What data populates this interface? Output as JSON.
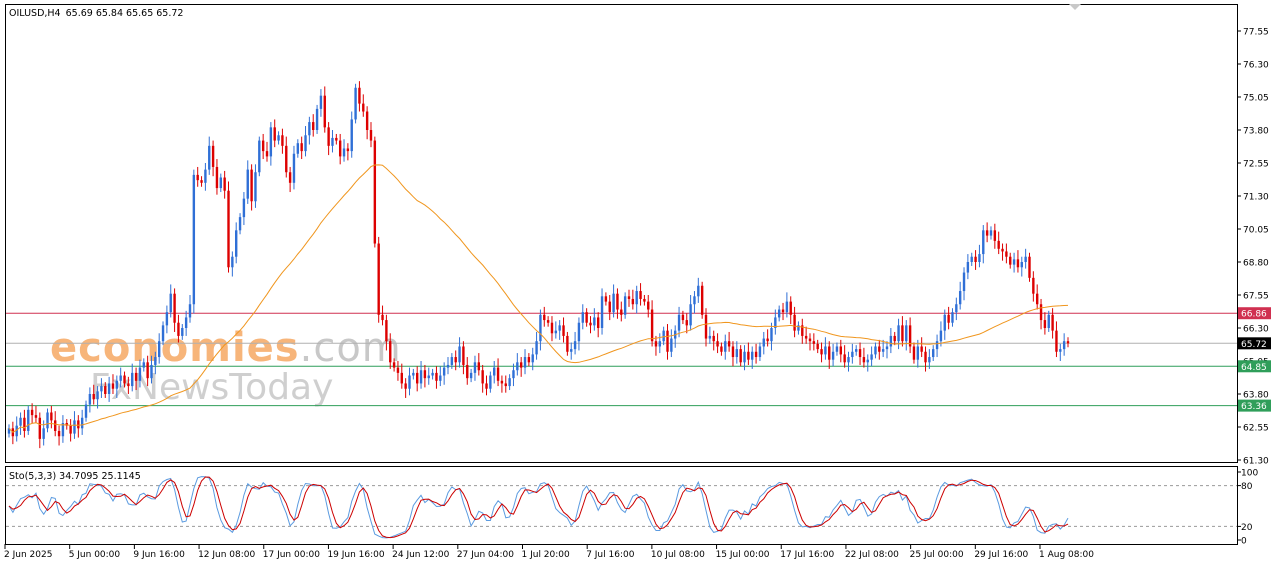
{
  "header": {
    "symbol": "OILUSD,H4",
    "ohlc": "65.69 65.84 65.65 65.72"
  },
  "stochastic_label": "Sto(5,3,3) 34.7095 25.1145",
  "watermark": {
    "brand": "economies.com",
    "brand_colored": "economies",
    "brand_suffix": ".com",
    "sub": "FxNewsToday"
  },
  "colors": {
    "up_candle": "#2f6fd6",
    "down_candle": "#dd0000",
    "moving_average": "#f0961e",
    "resistance_line": "#d03050",
    "support_line": "#2f9e5a",
    "stoch_main": "#5b9be0",
    "stoch_signal": "#cc0000",
    "current_price_tag": "#000000",
    "watermark_orange": "#f7b57a",
    "watermark_gray": "#c8c8c8"
  },
  "chart_data": [
    {
      "type": "candlestick",
      "title": "OILUSD,H4",
      "ylim": [
        61.3,
        77.55
      ],
      "y_ticks": [
        "77.55",
        "76.30",
        "75.05",
        "73.80",
        "72.55",
        "71.30",
        "70.05",
        "68.80",
        "67.55",
        "66.30",
        "65.05",
        "63.80",
        "62.55",
        "61.30"
      ],
      "x_ticks": [
        "2 Jun 2025",
        "5 Jun 00:00",
        "9 Jun 16:00",
        "12 Jun 08:00",
        "17 Jun 00:00",
        "19 Jun 16:00",
        "24 Jun 12:00",
        "27 Jun 04:00",
        "1 Jul 20:00",
        "7 Jul 16:00",
        "10 Jul 08:00",
        "15 Jul 00:00",
        "17 Jul 16:00",
        "22 Jul 08:00",
        "25 Jul 00:00",
        "29 Jul 16:00",
        "1 Aug 08:00"
      ],
      "current_price": "65.72",
      "horizontal_lines": [
        {
          "name": "resistance",
          "value": 66.86,
          "label": "66.86"
        },
        {
          "name": "support-1",
          "value": 64.85,
          "label": "64.85"
        },
        {
          "name": "support-2",
          "value": 63.36,
          "label": "63.36"
        }
      ],
      "closes": [
        62.5,
        62.2,
        62.6,
        62.9,
        62.4,
        63.2,
        63.0,
        62.9,
        62.1,
        62.5,
        63.1,
        62.8,
        62.4,
        62.2,
        62.7,
        62.6,
        62.3,
        62.8,
        62.5,
        62.9,
        63.4,
        63.8,
        63.6,
        63.9,
        64.1,
        63.8,
        64.2,
        64.0,
        64.3,
        64.5,
        64.2,
        64.1,
        64.6,
        64.3,
        64.8,
        65.0,
        64.4,
        64.9,
        65.2,
        65.8,
        66.4,
        66.9,
        67.6,
        66.5,
        66.0,
        66.3,
        66.7,
        67.2,
        72.1,
        71.9,
        71.8,
        72.3,
        73.2,
        72.4,
        71.6,
        72.0,
        71.5,
        68.6,
        69.0,
        70.0,
        70.5,
        71.2,
        72.3,
        71.1,
        72.2,
        73.4,
        73.0,
        72.8,
        73.9,
        73.4,
        73.6,
        73.2,
        72.2,
        71.8,
        72.9,
        73.3,
        73.0,
        73.6,
        74.1,
        73.8,
        74.6,
        75.1,
        73.9,
        73.2,
        73.5,
        73.4,
        72.8,
        73.1,
        73.0,
        74.2,
        75.4,
        74.8,
        74.5,
        73.8,
        73.4,
        69.5,
        66.8,
        66.6,
        65.8,
        65.0,
        64.8,
        64.6,
        64.2,
        64.0,
        64.5,
        64.6,
        64.2,
        64.7,
        64.4,
        64.5,
        64.6,
        64.3,
        64.5,
        64.8,
        64.9,
        65.2,
        65.0,
        65.6,
        64.9,
        64.4,
        64.6,
        65.0,
        64.7,
        64.2,
        64.0,
        64.5,
        64.8,
        64.3,
        64.2,
        64.1,
        64.4,
        64.7,
        65.0,
        64.8,
        65.2,
        65.0,
        65.3,
        65.8,
        66.8,
        66.6,
        66.5,
        66.1,
        66.2,
        66.4,
        66.0,
        65.4,
        65.5,
        65.8,
        66.5,
        66.9,
        66.5,
        66.4,
        66.7,
        66.3,
        67.5,
        67.3,
        66.9,
        67.6,
        67.0,
        66.8,
        67.5,
        67.4,
        67.2,
        67.7,
        67.4,
        67.3,
        67.0,
        65.8,
        65.6,
        65.8,
        66.2,
        65.4,
        65.9,
        66.2,
        66.8,
        66.6,
        66.4,
        67.2,
        67.5,
        67.9,
        66.8,
        65.9,
        66.0,
        65.8,
        65.6,
        65.4,
        65.8,
        65.6,
        65.2,
        65.5,
        65.0,
        65.4,
        65.1,
        65.4,
        65.2,
        65.6,
        65.9,
        65.8,
        66.3,
        66.7,
        67.0,
        66.9,
        67.3,
        66.8,
        66.2,
        66.4,
        66.0,
        65.9,
        65.8,
        65.7,
        65.5,
        65.3,
        65.6,
        65.1,
        65.4,
        65.6,
        65.3,
        65.0,
        65.2,
        65.4,
        65.5,
        65.2,
        65.0,
        65.1,
        65.3,
        65.6,
        65.4,
        65.5,
        65.6,
        66.0,
        65.8,
        66.4,
        65.8,
        66.4,
        65.6,
        65.1,
        65.6,
        65.4,
        65.0,
        65.2,
        65.5,
        65.8,
        66.2,
        66.8,
        66.5,
        66.9,
        67.2,
        67.7,
        68.4,
        68.8,
        69.0,
        68.8,
        69.1,
        70.0,
        69.8,
        70.0,
        69.6,
        69.3,
        69.2,
        69.0,
        68.7,
        68.9,
        68.6,
        68.8,
        69.0,
        68.2,
        67.6,
        67.2,
        66.6,
        66.3,
        66.8,
        66.2,
        65.4,
        65.5,
        65.8,
        65.72
      ],
      "moving_average_label": "orange moving average"
    },
    {
      "type": "line",
      "title": "Sto(5,3,3) 34.7095 25.1145",
      "ylim": [
        0,
        100
      ],
      "y_ticks": [
        "100",
        "80",
        "20",
        "0"
      ],
      "levels": [
        80,
        20
      ],
      "series": [
        {
          "name": "main",
          "last": 34.7095
        },
        {
          "name": "signal",
          "last": 25.1145
        }
      ]
    }
  ]
}
